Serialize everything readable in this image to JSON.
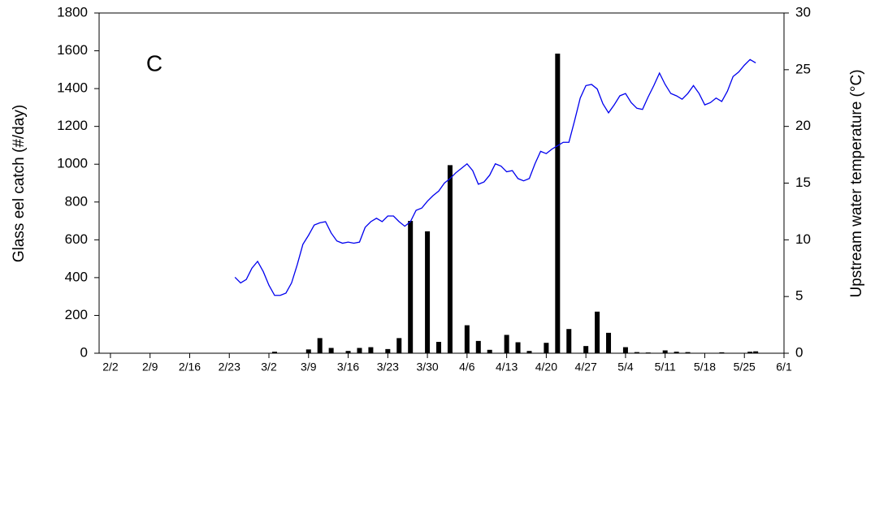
{
  "chart_data": {
    "type": "combo",
    "annotation": "C",
    "y_label": "Glass eel catch (#/day)",
    "y2_label": "Upstream water temperature (°C)",
    "xlim": [
      "1/31",
      "6/1"
    ],
    "xticks": [
      "2/2",
      "2/9",
      "2/16",
      "2/23",
      "3/2",
      "3/9",
      "3/16",
      "3/23",
      "3/30",
      "4/6",
      "4/13",
      "4/20",
      "4/27",
      "5/4",
      "5/11",
      "5/18",
      "5/25",
      "6/1"
    ],
    "ylim": [
      0,
      1800
    ],
    "yticks": [
      0,
      200,
      400,
      600,
      800,
      1000,
      1200,
      1400,
      1600,
      1800
    ],
    "y2lim": [
      0,
      30
    ],
    "y2ticks": [
      0,
      5,
      10,
      15,
      20,
      25,
      30
    ],
    "series": [
      {
        "type": "bar",
        "color": "#000000",
        "x": [
          "3/3",
          "3/9",
          "3/11",
          "3/13",
          "3/16",
          "3/18",
          "3/20",
          "3/23",
          "3/25",
          "3/27",
          "3/30",
          "4/1",
          "4/3",
          "4/6",
          "4/8",
          "4/10",
          "4/13",
          "4/15",
          "4/17",
          "4/20",
          "4/22",
          "4/24",
          "4/27",
          "4/29",
          "5/1",
          "5/4",
          "5/6",
          "5/8",
          "5/11",
          "5/13",
          "5/15",
          "5/21",
          "5/26",
          "5/27"
        ],
        "values": [
          8,
          20,
          80,
          28,
          12,
          28,
          32,
          22,
          80,
          700,
          645,
          60,
          995,
          148,
          65,
          18,
          97,
          58,
          12,
          55,
          1585,
          128,
          38,
          220,
          108,
          32,
          6,
          4,
          15,
          8,
          6,
          5,
          8,
          10
        ]
      },
      {
        "type": "line",
        "color": "#0000ee",
        "axis": "y2",
        "x": [
          "2/24",
          "2/25",
          "2/26",
          "2/27",
          "2/28",
          "3/1",
          "3/2",
          "3/3",
          "3/4",
          "3/5",
          "3/6",
          "3/7",
          "3/8",
          "3/9",
          "3/10",
          "3/11",
          "3/12",
          "3/13",
          "3/14",
          "3/15",
          "3/16",
          "3/17",
          "3/18",
          "3/19",
          "3/20",
          "3/21",
          "3/22",
          "3/23",
          "3/24",
          "3/25",
          "3/26",
          "3/27",
          "3/28",
          "3/29",
          "3/30",
          "3/31",
          "4/1",
          "4/2",
          "4/3",
          "4/4",
          "4/5",
          "4/6",
          "4/7",
          "4/8",
          "4/9",
          "4/10",
          "4/11",
          "4/12",
          "4/13",
          "4/14",
          "4/15",
          "4/16",
          "4/17",
          "4/18",
          "4/19",
          "4/20",
          "4/21",
          "4/22",
          "4/23",
          "4/24",
          "4/25",
          "4/26",
          "4/27",
          "4/28",
          "4/29",
          "4/30",
          "5/1",
          "5/2",
          "5/3",
          "5/4",
          "5/5",
          "5/6",
          "5/7",
          "5/8",
          "5/9",
          "5/10",
          "5/11",
          "5/12",
          "5/13",
          "5/14",
          "5/15",
          "5/16",
          "5/17",
          "5/18",
          "5/19",
          "5/20",
          "5/21",
          "5/22",
          "5/23",
          "5/24",
          "5/25",
          "5/26",
          "5/27"
        ],
        "values": [
          6.7,
          6.2,
          6.5,
          7.5,
          8.1,
          7.2,
          6.0,
          5.1,
          5.1,
          5.3,
          6.2,
          7.8,
          9.6,
          10.4,
          11.3,
          11.5,
          11.6,
          10.6,
          9.9,
          9.7,
          9.8,
          9.7,
          9.8,
          11.1,
          11.6,
          11.9,
          11.6,
          12.1,
          12.1,
          11.6,
          11.2,
          11.6,
          12.6,
          12.8,
          13.4,
          13.9,
          14.3,
          15.0,
          15.4,
          15.9,
          16.3,
          16.7,
          16.1,
          14.9,
          15.1,
          15.7,
          16.7,
          16.5,
          16.0,
          16.1,
          15.4,
          15.2,
          15.4,
          16.7,
          17.8,
          17.6,
          18.0,
          18.3,
          18.6,
          18.6,
          20.5,
          22.5,
          23.6,
          23.7,
          23.3,
          22.0,
          21.2,
          21.9,
          22.7,
          22.9,
          22.1,
          21.6,
          21.5,
          22.6,
          23.6,
          24.7,
          23.7,
          22.9,
          22.7,
          22.4,
          22.9,
          23.6,
          22.9,
          21.9,
          22.1,
          22.5,
          22.2,
          23.1,
          24.4,
          24.8,
          25.4,
          25.9,
          25.6
        ]
      }
    ]
  }
}
